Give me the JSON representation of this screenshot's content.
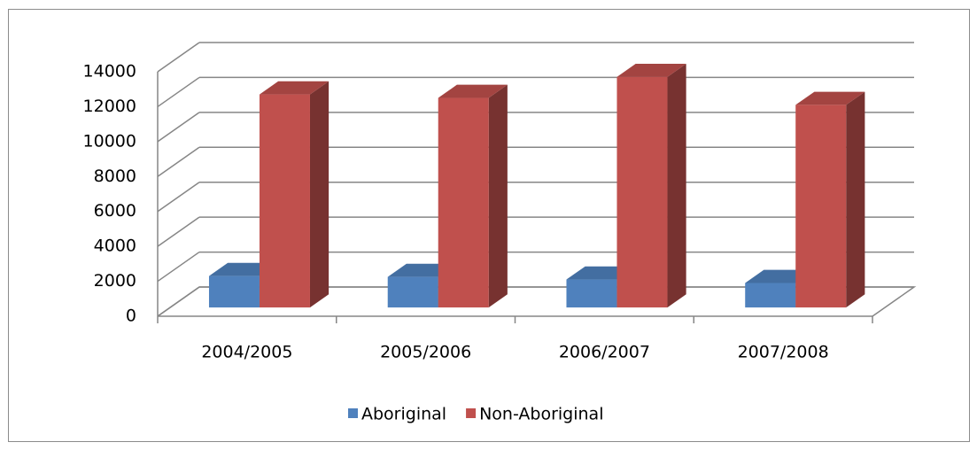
{
  "chart_data": {
    "type": "bar3d",
    "categories": [
      "2004/2005",
      "2005/2006",
      "2006/2007",
      "2007/2008"
    ],
    "series": [
      {
        "name": "Aboriginal",
        "color": "#4f81bd",
        "values": [
          1800,
          1750,
          1600,
          1400
        ]
      },
      {
        "name": "Non-Aboriginal",
        "color": "#c0504d",
        "values": [
          12200,
          12000,
          13200,
          11600
        ]
      }
    ],
    "ylim": [
      0,
      14000
    ],
    "yticks": [
      0,
      2000,
      4000,
      6000,
      8000,
      10000,
      12000,
      14000
    ],
    "grid": true,
    "legend": "bottom"
  }
}
